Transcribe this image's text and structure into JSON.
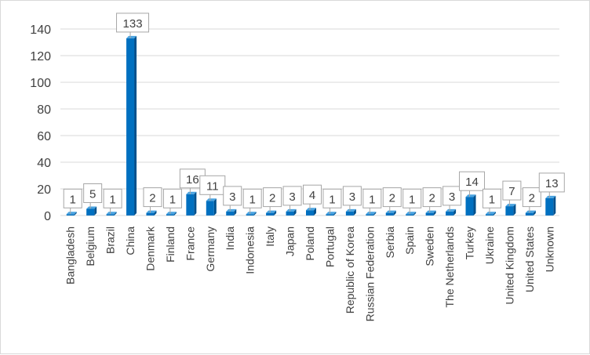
{
  "chart_data": {
    "type": "bar",
    "title": "",
    "xlabel": "",
    "ylabel": "",
    "ylim": [
      0,
      140
    ],
    "yticks": [
      0,
      20,
      40,
      60,
      80,
      100,
      120,
      140
    ],
    "grid": true,
    "legend": "none",
    "categories": [
      "Bangladesh",
      "Belgium",
      "Brazil",
      "China",
      "Denmark",
      "Finland",
      "France",
      "Germany",
      "India",
      "Indonesia",
      "Italy",
      "Japan",
      "Poland",
      "Portugal",
      "Republic of Korea",
      "Russian Federation",
      "Serbia",
      "Spain",
      "Sweden",
      "The Netherlands",
      "Turkey",
      "Ukraine",
      "United Kingdom",
      "United States",
      "Unknown"
    ],
    "values": [
      1,
      5,
      1,
      133,
      2,
      1,
      16,
      11,
      3,
      1,
      2,
      3,
      4,
      1,
      3,
      1,
      2,
      1,
      2,
      3,
      14,
      1,
      7,
      2,
      13
    ],
    "colors": {
      "bar": "#0070c0",
      "bar_dark": "#00508c",
      "bar_top": "#4aa3e0",
      "grid": "#d9d9d9",
      "text": "#404040",
      "callout_border": "#a6a6a6"
    }
  }
}
